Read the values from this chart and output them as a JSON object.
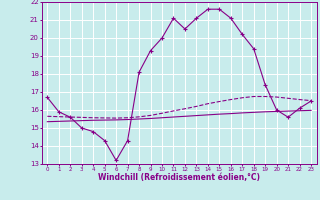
{
  "xlabel": "Windchill (Refroidissement éolien,°C)",
  "xlim": [
    -0.5,
    23.5
  ],
  "ylim": [
    13,
    22
  ],
  "yticks": [
    13,
    14,
    15,
    16,
    17,
    18,
    19,
    20,
    21,
    22
  ],
  "xticks": [
    0,
    1,
    2,
    3,
    4,
    5,
    6,
    7,
    8,
    9,
    10,
    11,
    12,
    13,
    14,
    15,
    16,
    17,
    18,
    19,
    20,
    21,
    22,
    23
  ],
  "bg_color": "#c8ecec",
  "grid_color": "#ffffff",
  "line_color": "#880088",
  "line1_x": [
    0,
    1,
    2,
    3,
    4,
    5,
    6,
    7,
    8,
    9,
    10,
    11,
    12,
    13,
    14,
    15,
    16,
    17,
    18,
    19,
    20,
    21,
    22,
    23
  ],
  "line1_y": [
    16.7,
    15.9,
    15.6,
    15.0,
    14.8,
    14.3,
    13.2,
    14.3,
    18.1,
    19.3,
    20.0,
    21.1,
    20.5,
    21.1,
    21.6,
    21.6,
    21.1,
    20.2,
    19.4,
    17.4,
    16.0,
    15.6,
    16.1,
    16.5
  ],
  "line2_x": [
    0,
    1,
    2,
    3,
    4,
    5,
    6,
    7,
    8,
    9,
    10,
    11,
    12,
    13,
    14,
    15,
    16,
    17,
    18,
    19,
    20,
    21,
    22,
    23
  ],
  "line2_y": [
    15.65,
    15.63,
    15.61,
    15.59,
    15.57,
    15.56,
    15.55,
    15.57,
    15.62,
    15.7,
    15.82,
    15.95,
    16.07,
    16.2,
    16.35,
    16.47,
    16.58,
    16.68,
    16.75,
    16.75,
    16.72,
    16.65,
    16.58,
    16.52
  ],
  "line3_x": [
    0,
    1,
    2,
    3,
    4,
    5,
    6,
    7,
    8,
    9,
    10,
    11,
    12,
    13,
    14,
    15,
    16,
    17,
    18,
    19,
    20,
    21,
    22,
    23
  ],
  "line3_y": [
    15.35,
    15.37,
    15.39,
    15.41,
    15.43,
    15.44,
    15.45,
    15.47,
    15.5,
    15.53,
    15.57,
    15.61,
    15.65,
    15.69,
    15.73,
    15.77,
    15.8,
    15.84,
    15.87,
    15.9,
    15.92,
    15.94,
    15.96,
    15.98
  ]
}
